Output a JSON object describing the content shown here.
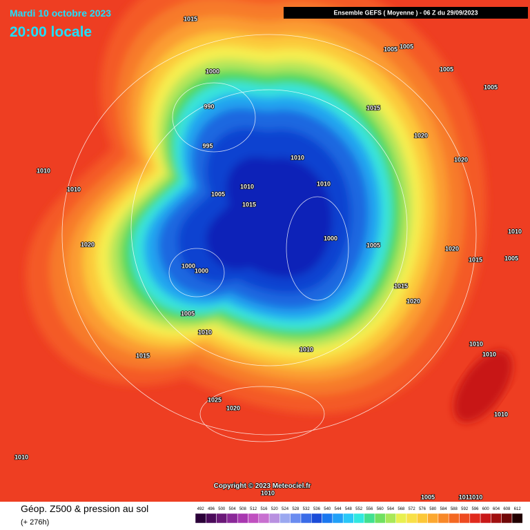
{
  "header": {
    "date": "Mardi 10 octobre 2023",
    "time": "20:00 locale",
    "model": "Ensemble GEFS  ( Moyenne )  -  06 Z du 29/09/2023"
  },
  "map": {
    "pressure_labels": [
      "1015",
      "1005",
      "1005",
      "1005",
      "1005",
      "1000",
      "990",
      "1015",
      "1020",
      "995",
      "1010",
      "1020",
      "1010",
      "1010",
      "1005",
      "1010",
      "1010",
      "1015",
      "1020",
      "1000",
      "1005",
      "1020",
      "1010",
      "1015",
      "1005",
      "1000",
      "1000",
      "1015",
      "1020",
      "1005",
      "1010",
      "1010",
      "1010",
      "1010",
      "1015",
      "1025",
      "1020",
      "1010",
      "1010",
      "1010",
      "1005",
      "1011010"
    ],
    "copyright": "Copyright © 2023 Meteociel.fr"
  },
  "footer": {
    "title": "Géop. Z500 & pression au sol",
    "lead": "(+ 276h)",
    "scale": [
      "492",
      "496",
      "500",
      "504",
      "508",
      "512",
      "516",
      "520",
      "524",
      "528",
      "532",
      "536",
      "540",
      "544",
      "548",
      "552",
      "556",
      "560",
      "564",
      "568",
      "572",
      "576",
      "580",
      "584",
      "588",
      "592",
      "596",
      "600",
      "604",
      "608",
      "612"
    ]
  }
}
